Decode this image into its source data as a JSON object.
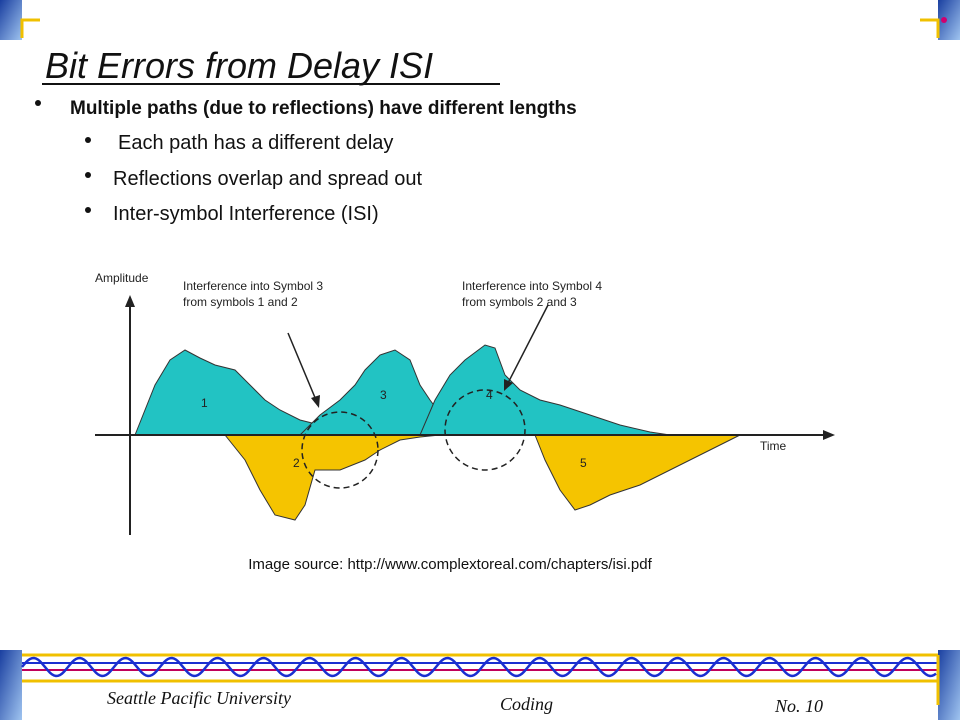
{
  "header": {
    "title": "Bit Errors from Delay ISI"
  },
  "bullets": [
    {
      "text": "Multiple paths (due to reflections) have different lengths",
      "sub_bullets": [
        "Each path has a different delay",
        "Reflections overlap and spread out",
        "Inter-symbol Interference (ISI)"
      ]
    }
  ],
  "figure": {
    "y_axis_label": "Amplitude",
    "x_axis_label": "Time",
    "annotations": [
      [
        "Interference into Symbol 3",
        "from symbols 1 and 2"
      ],
      [
        "Interference into Symbol 4",
        "from symbols 2 and 3"
      ]
    ],
    "pulse_labels": [
      "1",
      "2",
      "3",
      "4",
      "5"
    ]
  },
  "caption": "Image source: http://www.complextoreal.com/chapters/isi.pdf",
  "footer": {
    "institution": "Seattle Pacific University",
    "course": "Coding",
    "slide_number": "No. 10"
  }
}
